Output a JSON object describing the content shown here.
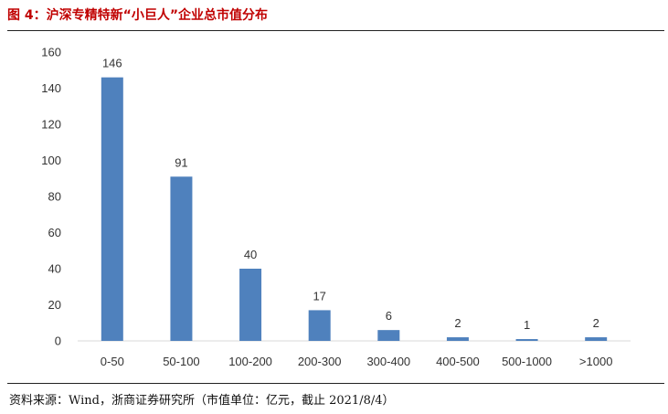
{
  "figure": {
    "title": "图 4：沪深专精特新“小巨人”企业总市值分布",
    "source": "资料来源：Wind，浙商证券研究所（市值单位：亿元，截止 2021/8/4）"
  },
  "chart_data": {
    "type": "bar",
    "categories": [
      "0-50",
      "50-100",
      "100-200",
      "200-300",
      "300-400",
      "400-500",
      "500-1000",
      ">1000"
    ],
    "values": [
      146,
      91,
      40,
      17,
      6,
      2,
      1,
      2
    ],
    "title": "",
    "xlabel": "",
    "ylabel": "",
    "ylim": [
      0,
      160
    ],
    "yticks": [
      0,
      20,
      40,
      60,
      80,
      100,
      120,
      140,
      160
    ],
    "grid": false,
    "legend": "none",
    "bar_color": "#4f81bd",
    "data_labels": true
  }
}
